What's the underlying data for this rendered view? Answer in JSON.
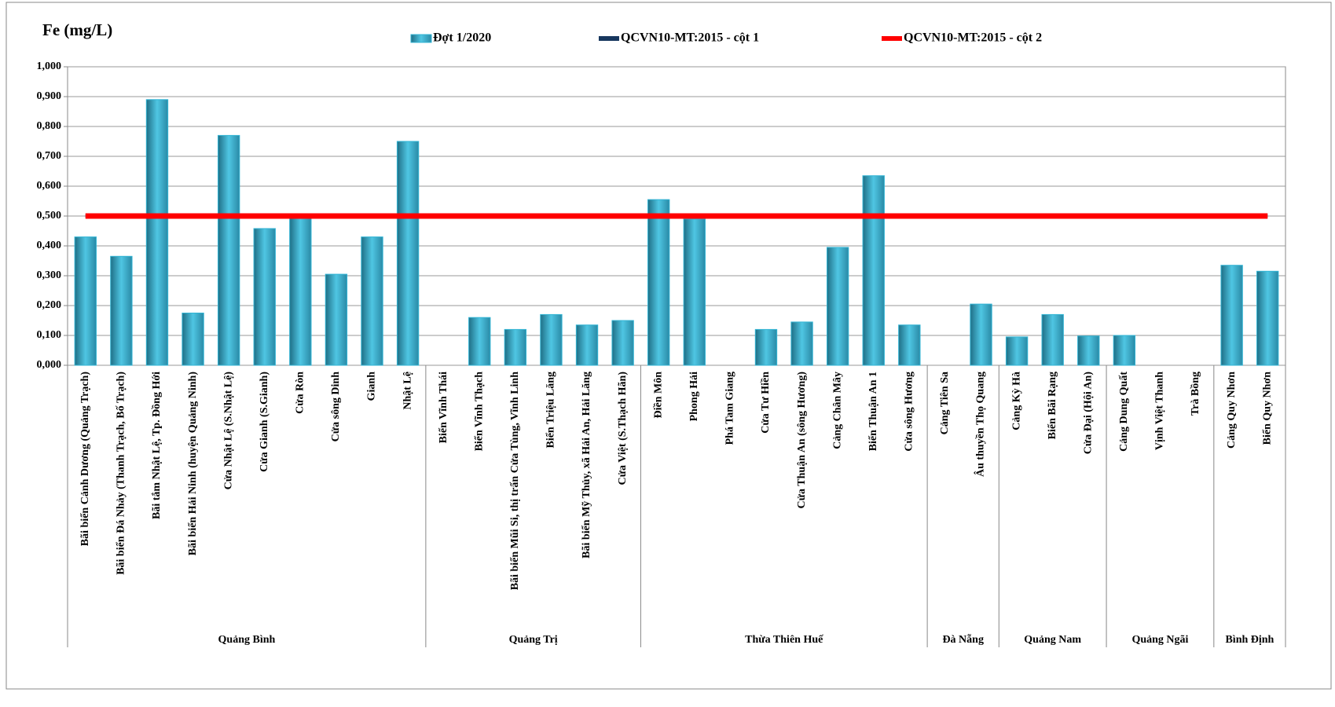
{
  "chart_data": {
    "type": "bar",
    "title": "Fe (mg/L)",
    "groups": [
      {
        "name": "Quảng Bình",
        "categories": [
          "Bãi biển Cảnh Dương (Quảng Trạch)",
          "Bãi biển Đá Nhảy (Thanh  Trạch, Bố Trạch)",
          "Bãi tắm Nhật Lệ, Tp. Đồng Hới",
          "Bãi biển Hải Ninh (huyện Quảng Ninh)",
          "Cửa Nhật Lệ (S.Nhật Lệ)",
          "Cửa Gianh (S.Gianh)",
          "Cửa Ròn",
          "Cửa sông Dinh",
          "Gianh",
          "Nhật Lệ"
        ]
      },
      {
        "name": "Quảng Trị",
        "categories": [
          "Biển Vĩnh Thái",
          "Biển Vĩnh Thạch",
          "Bãi biển Mũi Si, thị trấn Cửa Tùng, Vĩnh Linh",
          "Biển Triệu Lăng",
          "Bãi biển Mỹ Thủy,  xã Hải An, Hải Lăng",
          "Cửa Việt (S.Thạch Hãn)"
        ]
      },
      {
        "name": "Thừa Thiên Huế",
        "categories": [
          "Điền Môn",
          "Phong Hải",
          "Phá Tam Giang",
          "Cửa Tư Hiền",
          "Cửa Thuận An (sông Hương)",
          "Cảng Chân Mây",
          "Biển Thuận An 1",
          "Cửa sông Hương"
        ]
      },
      {
        "name": "Đà Nẵng",
        "categories": [
          "Cảng Tiên Sa",
          "Âu thuyền Thọ Quang"
        ]
      },
      {
        "name": "Quảng Nam",
        "categories": [
          "Cảng Kỳ Hà",
          "Biển Bãi Rạng",
          "Cửa Đại (Hội An)"
        ]
      },
      {
        "name": "Quảng Ngãi",
        "categories": [
          "Cảng Dung Quất",
          "Vịnh Việt Thanh",
          "Trà Bồng"
        ]
      },
      {
        "name": "Bình Định",
        "categories": [
          "Cảng Quy Nhơn",
          "Biển Quy Nhơn"
        ]
      }
    ],
    "series": [
      {
        "name": "Đợt 1/2020",
        "type": "bar",
        "color": "#31b4d4",
        "values": [
          0.43,
          0.365,
          0.89,
          0.175,
          0.77,
          0.458,
          0.505,
          0.305,
          0.43,
          0.75,
          null,
          0.16,
          0.12,
          0.17,
          0.135,
          0.15,
          0.555,
          0.49,
          null,
          0.12,
          0.145,
          0.395,
          0.635,
          0.135,
          null,
          0.205,
          0.095,
          0.17,
          0.098,
          0.1,
          null,
          null,
          0.335,
          0.315
        ]
      },
      {
        "name": "QCVN10-MT:2015 - cột 1",
        "type": "line",
        "color": "#17375e",
        "values": [
          0.5,
          0.5,
          0.5,
          0.5,
          0.5,
          0.5,
          0.5,
          0.5,
          0.5,
          0.5,
          0.5,
          0.5,
          0.5,
          0.5,
          0.5,
          0.5,
          0.5,
          0.5,
          0.5,
          0.5,
          0.5,
          0.5,
          0.5,
          0.5,
          0.5,
          0.5,
          0.5,
          0.5,
          0.5,
          0.5,
          0.5,
          0.5,
          0.5,
          0.5
        ]
      },
      {
        "name": "QCVN10-MT:2015 - cột 2",
        "type": "line",
        "color": "#ff0000",
        "values": [
          0.5,
          0.5,
          0.5,
          0.5,
          0.5,
          0.5,
          0.5,
          0.5,
          0.5,
          0.5,
          0.5,
          0.5,
          0.5,
          0.5,
          0.5,
          0.5,
          0.5,
          0.5,
          0.5,
          0.5,
          0.5,
          0.5,
          0.5,
          0.5,
          0.5,
          0.5,
          0.5,
          0.5,
          0.5,
          0.5,
          0.5,
          0.5,
          0.5,
          0.5
        ]
      }
    ],
    "ylim": [
      0,
      1
    ],
    "yticks": [
      {
        "value": 0,
        "label": "0,000"
      },
      {
        "value": 0.1,
        "label": "0,100"
      },
      {
        "value": 0.2,
        "label": "0,200"
      },
      {
        "value": 0.3,
        "label": "0,300"
      },
      {
        "value": 0.4,
        "label": "0,400"
      },
      {
        "value": 0.5,
        "label": "0,500"
      },
      {
        "value": 0.6,
        "label": "0,600"
      },
      {
        "value": 0.7,
        "label": "0,700"
      },
      {
        "value": 0.8,
        "label": "0,800"
      },
      {
        "value": 0.9,
        "label": "0,900"
      },
      {
        "value": 1,
        "label": "1,000"
      }
    ],
    "grid": true,
    "legend": "top"
  }
}
